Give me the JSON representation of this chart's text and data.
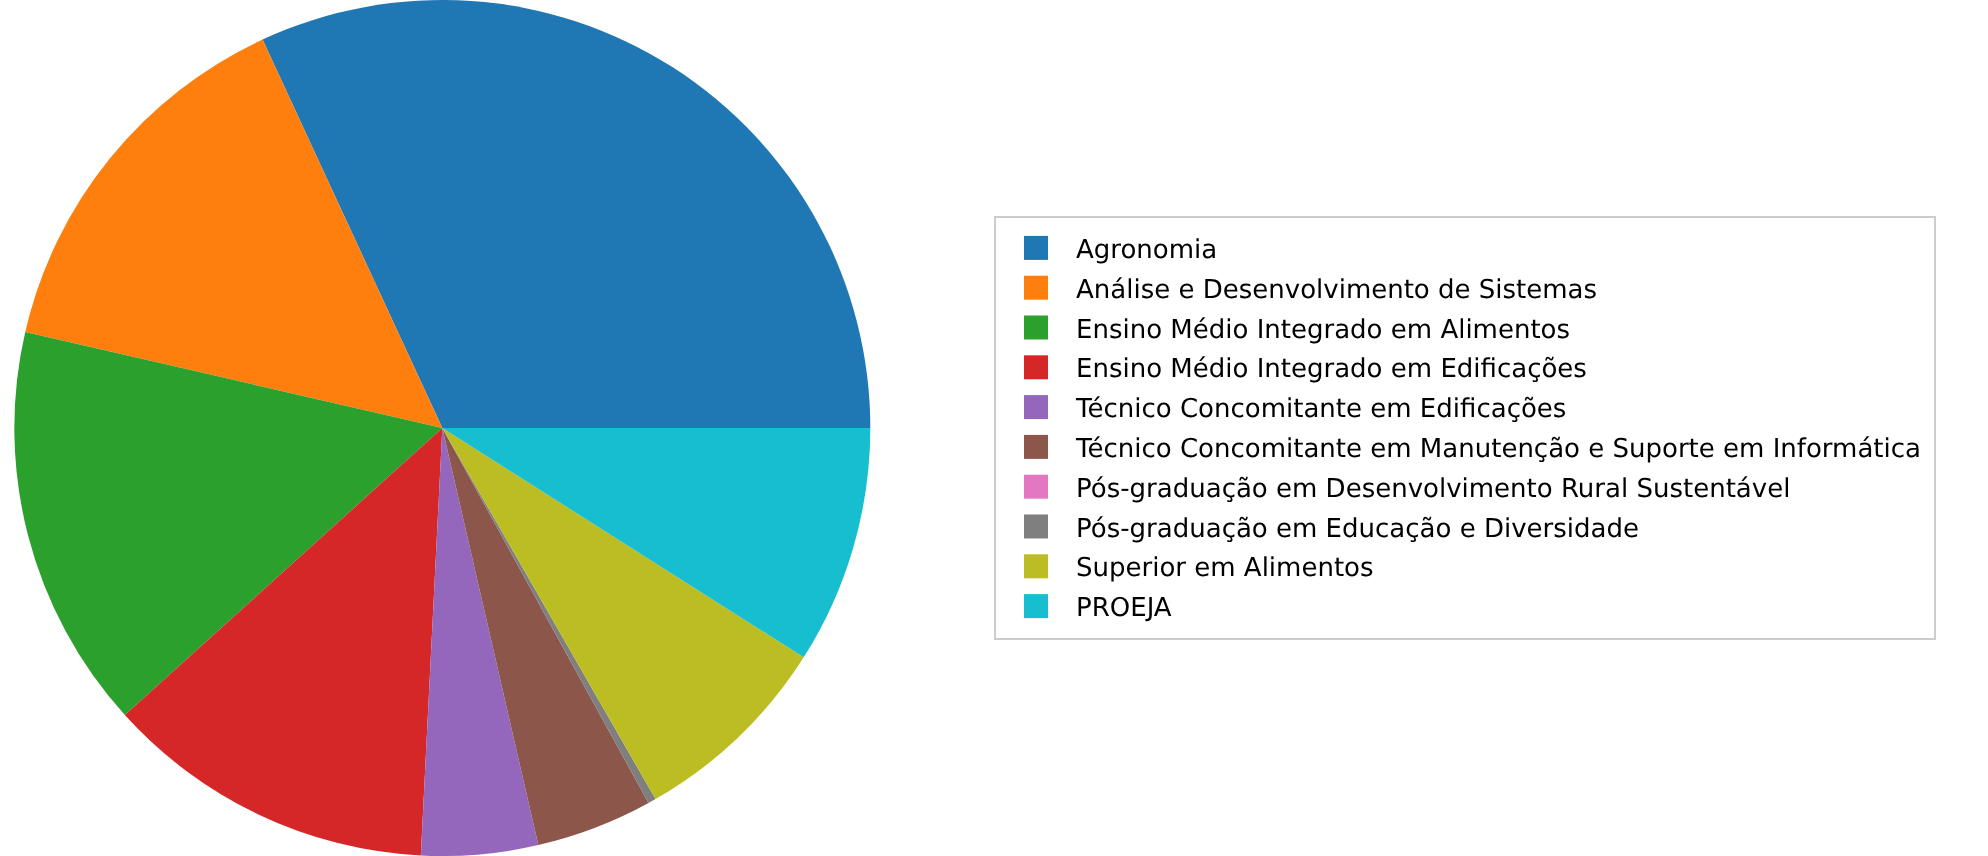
{
  "chart_data": {
    "type": "pie",
    "categories": [
      "Agronomia",
      "Análise e Desenvolvimento de Sistemas",
      "Ensino Médio Integrado em Alimentos",
      "Ensino Médio Integrado em Edificações",
      "Técnico Concomitante em Edificações",
      "Técnico Concomitante em Manutenção e Suporte em Informática",
      "Pós-graduação em Desenvolvimento Rural Sustentável",
      "Pós-graduação em Educação e Diversidade",
      "Superior em Alimentos",
      "PROEJA"
    ],
    "values": [
      31.9,
      14.5,
      15.3,
      12.5,
      4.4,
      4.4,
      0,
      0.3,
      7.7,
      9.0
    ],
    "colors": [
      "#1f77b4",
      "#ff7f0e",
      "#2ca02c",
      "#d62728",
      "#9467bd",
      "#8c564b",
      "#e377c2",
      "#7f7f7f",
      "#bcbd22",
      "#17becf"
    ],
    "legend": "right"
  }
}
